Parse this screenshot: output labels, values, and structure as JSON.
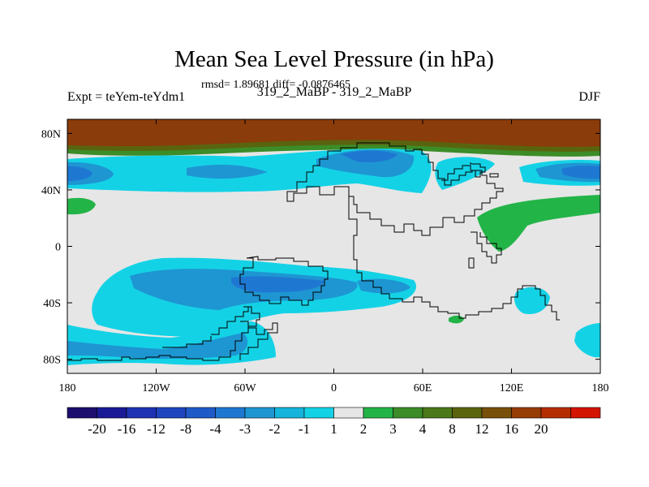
{
  "chart_data": {
    "type": "heatmap",
    "title": "Mean Sea Level Pressure (in hPa)",
    "stats_line": "rmsd= 1.89681 diff= -0.0876465",
    "left_label": "Expt = teYem-teYdm1",
    "center_label": "319_2_MaBP - 319_2_MaBP",
    "right_label": "DJF",
    "x_range": [
      -180,
      180
    ],
    "y_range": [
      -90,
      90
    ],
    "x_ticks": [
      {
        "value": -180,
        "label": "180"
      },
      {
        "value": -120,
        "label": "120W"
      },
      {
        "value": -60,
        "label": "60W"
      },
      {
        "value": 0,
        "label": "0"
      },
      {
        "value": 60,
        "label": "60E"
      },
      {
        "value": 120,
        "label": "120E"
      },
      {
        "value": 180,
        "label": "180"
      }
    ],
    "y_ticks": [
      {
        "value": 80,
        "label": "80N"
      },
      {
        "value": 40,
        "label": "40N"
      },
      {
        "value": 0,
        "label": "0"
      },
      {
        "value": -40,
        "label": "40S"
      },
      {
        "value": -80,
        "label": "80S"
      }
    ],
    "colorbar": {
      "labels": [
        "-20",
        "-16",
        "-12",
        "-8",
        "-4",
        "-3",
        "-2",
        "-1",
        "1",
        "2",
        "3",
        "4",
        "8",
        "12",
        "16",
        "20"
      ],
      "colors": [
        "#1c0f6e",
        "#1a1a96",
        "#1e32b4",
        "#1e46be",
        "#1e5ac8",
        "#1e78d2",
        "#1e96d2",
        "#14b4dc",
        "#14d2e6",
        "#e6e6e6",
        "#23b448",
        "#3c8c28",
        "#4b7819",
        "#5a640f",
        "#78500a",
        "#963c05",
        "#b42d00",
        "#d21400"
      ]
    },
    "regions": [
      {
        "name": "arctic-high",
        "level": "12 to 16",
        "color": "#8a3c0a",
        "lon_range": [
          -180,
          180
        ],
        "lat_range": [
          60,
          90
        ]
      },
      {
        "name": "north-pacific-low",
        "level": "-4 to -3",
        "color": "#1e78d2",
        "center": [
          -180,
          45
        ]
      },
      {
        "name": "north-atlantic-low",
        "level": "-3 to -2",
        "color": "#1e96d2",
        "center": [
          20,
          55
        ]
      },
      {
        "name": "west-pacific-low",
        "level": "-4 to -3",
        "color": "#1e78d2",
        "center": [
          160,
          45
        ]
      },
      {
        "name": "indian-ocean-high",
        "level": "1 to 2",
        "color": "#23b448",
        "center": [
          120,
          15
        ]
      },
      {
        "name": "south-pacific-low",
        "level": "-3 to -2",
        "color": "#1e96d2",
        "center": [
          -60,
          -30
        ]
      },
      {
        "name": "southern-ocean-low",
        "level": "-2 to -1",
        "color": "#14d2e6",
        "center": [
          -100,
          -70
        ]
      }
    ]
  }
}
